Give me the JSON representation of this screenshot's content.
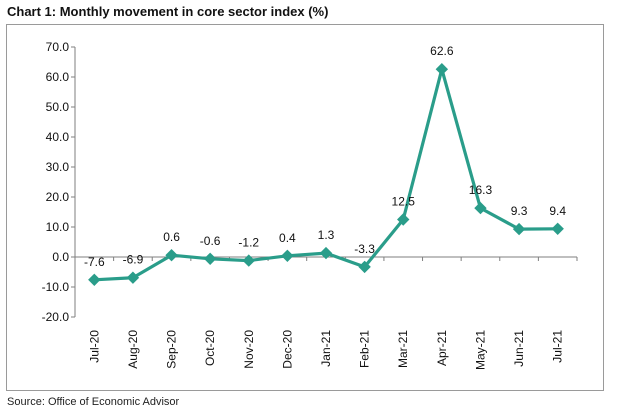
{
  "title": "Chart 1: Monthly movement in core sector index (%)",
  "source": "Source: Office of Economic Advisor",
  "colors": {
    "series": "#2a9d8a",
    "axis": "#7f7f7f",
    "frame": "#9a9a9a"
  },
  "chart_data": {
    "type": "line",
    "title": "Chart 1: Monthly movement in core sector index (%)",
    "xlabel": "",
    "ylabel": "",
    "categories": [
      "Jul-20",
      "Aug-20",
      "Sep-20",
      "Oct-20",
      "Nov-20",
      "Dec-20",
      "Jan-21",
      "Feb-21",
      "Mar-21",
      "Apr-21",
      "May-21",
      "Jun-21",
      "Jul-21"
    ],
    "values": [
      -7.6,
      -6.9,
      0.6,
      -0.6,
      -1.2,
      0.4,
      1.3,
      -3.3,
      12.5,
      62.6,
      16.3,
      9.3,
      9.4
    ],
    "data_labels": [
      "-7.6",
      "-6.9",
      "0.6",
      "-0.6",
      "-1.2",
      "0.4",
      "1.3",
      "-3.3",
      "12.5",
      "62.6",
      "16.3",
      "9.3",
      "9.4"
    ],
    "y_ticks": [
      "70.0",
      "60.0",
      "50.0",
      "40.0",
      "30.0",
      "20.0",
      "10.0",
      "0.0",
      "-10.0",
      "-20.0"
    ],
    "ylim": [
      -20,
      70
    ],
    "grid": false,
    "legend": "none",
    "marker": "diamond"
  }
}
